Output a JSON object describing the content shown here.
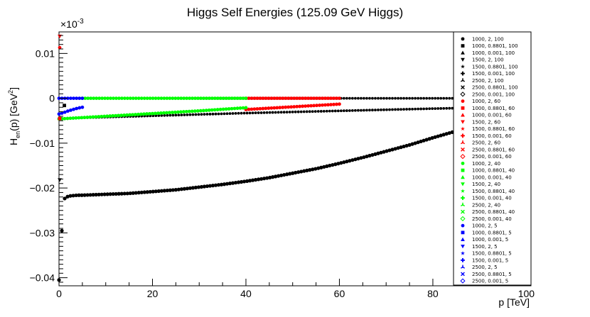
{
  "chart_data": {
    "type": "scatter",
    "title": "Higgs Self Energies (125.09 GeV Higgs)",
    "xlabel": "p [TeV]",
    "ylabel_main": "H",
    "ylabel_sub": "en",
    "ylabel_rest": "(p) [GeV",
    "ylabel_sup": "2",
    "ylabel_close": "]",
    "y_exponent": "×10",
    "y_exponent_power": "-3",
    "xlim": [
      0,
      101
    ],
    "ylim": [
      -0.0418,
      0.0148
    ],
    "x_ticks": [
      0,
      20,
      40,
      60,
      80,
      100
    ],
    "x_tick_labels": [
      "0",
      "20",
      "40",
      "60",
      "80",
      "100"
    ],
    "y_ticks": [
      0.01,
      0,
      -0.01,
      -0.02,
      -0.03,
      -0.04
    ],
    "y_tick_labels": [
      "0.01",
      "0",
      "−0.01",
      "−0.02",
      "−0.03",
      "−0.04"
    ],
    "grid": false,
    "legend_position": "right",
    "colors": {
      "black": "#000000",
      "red": "#ff0000",
      "green": "#00ff00",
      "blue": "#0000ff"
    },
    "legend": [
      {
        "label": "1000, 2, 100",
        "color": "#000000",
        "marker": "circle"
      },
      {
        "label": "1000, 0.8801, 100",
        "color": "#000000",
        "marker": "square"
      },
      {
        "label": "1000, 0.001, 100",
        "color": "#000000",
        "marker": "triangle-up"
      },
      {
        "label": "1500, 2, 100",
        "color": "#000000",
        "marker": "triangle-down"
      },
      {
        "label": "1500, 0.8801, 100",
        "color": "#000000",
        "marker": "star"
      },
      {
        "label": "1500, 0.001, 100",
        "color": "#000000",
        "marker": "cross"
      },
      {
        "label": "2500, 2, 100",
        "color": "#000000",
        "marker": "tri-star"
      },
      {
        "label": "2500, 0.8801, 100",
        "color": "#000000",
        "marker": "x"
      },
      {
        "label": "2500, 0.001, 100",
        "color": "#000000",
        "marker": "open-diamond"
      },
      {
        "label": "1000, 2, 60",
        "color": "#ff0000",
        "marker": "circle"
      },
      {
        "label": "1000, 0.8801, 60",
        "color": "#ff0000",
        "marker": "square"
      },
      {
        "label": "1000, 0.001, 60",
        "color": "#ff0000",
        "marker": "triangle-up"
      },
      {
        "label": "1500, 2, 60",
        "color": "#ff0000",
        "marker": "triangle-down"
      },
      {
        "label": "1500, 0.8801, 60",
        "color": "#ff0000",
        "marker": "star"
      },
      {
        "label": "1500, 0.001, 60",
        "color": "#ff0000",
        "marker": "cross"
      },
      {
        "label": "2500, 2, 60",
        "color": "#ff0000",
        "marker": "tri-star"
      },
      {
        "label": "2500, 0.8801, 60",
        "color": "#ff0000",
        "marker": "x"
      },
      {
        "label": "2500, 0.001, 60",
        "color": "#ff0000",
        "marker": "open-diamond"
      },
      {
        "label": "1000, 2, 40",
        "color": "#00ff00",
        "marker": "circle"
      },
      {
        "label": "1000, 0.8801, 40",
        "color": "#00ff00",
        "marker": "square"
      },
      {
        "label": "1000, 0.001, 40",
        "color": "#00ff00",
        "marker": "triangle-up"
      },
      {
        "label": "1500, 2, 40",
        "color": "#00ff00",
        "marker": "triangle-down"
      },
      {
        "label": "1500, 0.8801, 40",
        "color": "#00ff00",
        "marker": "star"
      },
      {
        "label": "1500, 0.001, 40",
        "color": "#00ff00",
        "marker": "cross"
      },
      {
        "label": "2500, 2, 40",
        "color": "#00ff00",
        "marker": "tri-star"
      },
      {
        "label": "2500, 0.8801, 40",
        "color": "#00ff00",
        "marker": "x"
      },
      {
        "label": "2500, 0.001, 40",
        "color": "#00ff00",
        "marker": "open-diamond"
      },
      {
        "label": "1000, 2, 5",
        "color": "#0000ff",
        "marker": "circle"
      },
      {
        "label": "1000, 0.8801, 5",
        "color": "#0000ff",
        "marker": "square"
      },
      {
        "label": "1000, 0.001, 5",
        "color": "#0000ff",
        "marker": "triangle-up"
      },
      {
        "label": "1500, 2, 5",
        "color": "#0000ff",
        "marker": "triangle-down"
      },
      {
        "label": "1500, 0.8801, 5",
        "color": "#0000ff",
        "marker": "star"
      },
      {
        "label": "1500, 0.001, 5",
        "color": "#0000ff",
        "marker": "cross"
      },
      {
        "label": "2500, 2, 5",
        "color": "#0000ff",
        "marker": "tri-star"
      },
      {
        "label": "2500, 0.8801, 5",
        "color": "#0000ff",
        "marker": "x"
      },
      {
        "label": "2500, 0.001, 5",
        "color": "#0000ff",
        "marker": "open-diamond"
      }
    ],
    "series": [
      {
        "color": "#000000",
        "marker": "circle",
        "size": 2.6,
        "points": [
          [
            0,
            -0.0405
          ],
          [
            1,
            -0.0225
          ],
          [
            2,
            -0.0218
          ],
          [
            3,
            -0.0217
          ],
          [
            4,
            -0.0216
          ],
          [
            5,
            -0.0216
          ],
          [
            10,
            -0.0214
          ],
          [
            15,
            -0.0212
          ],
          [
            20,
            -0.0208
          ],
          [
            25,
            -0.0204
          ],
          [
            30,
            -0.0198
          ],
          [
            35,
            -0.0192
          ],
          [
            40,
            -0.0185
          ],
          [
            45,
            -0.0177
          ],
          [
            50,
            -0.0167
          ],
          [
            55,
            -0.0157
          ],
          [
            60,
            -0.0145
          ],
          [
            65,
            -0.0132
          ],
          [
            70,
            -0.0118
          ],
          [
            75,
            -0.0104
          ],
          [
            80,
            -0.0088
          ],
          [
            85,
            -0.0073
          ],
          [
            90,
            -0.006
          ],
          [
            95,
            -0.0053
          ],
          [
            100,
            -0.0054
          ]
        ]
      },
      {
        "color": "#000000",
        "marker": "circle",
        "size": 1.9,
        "points": [
          [
            0,
            -0.0045
          ],
          [
            20,
            -0.0039
          ],
          [
            40,
            -0.0033
          ],
          [
            60,
            -0.0028
          ],
          [
            80,
            -0.0023
          ],
          [
            100,
            -0.0019
          ]
        ]
      },
      {
        "color": "#000000",
        "marker": "circle",
        "size": 1.9,
        "points": [
          [
            0,
            0
          ],
          [
            20,
            0
          ],
          [
            40,
            0
          ],
          [
            60,
            0
          ],
          [
            80,
            0
          ],
          [
            100,
            0
          ]
        ]
      },
      {
        "color": "#ff0000",
        "marker": "circle",
        "size": 2.4,
        "points": [
          [
            40,
            -0.0025
          ],
          [
            45,
            -0.0022
          ],
          [
            50,
            -0.0019
          ],
          [
            55,
            -0.0016
          ],
          [
            60,
            -0.0013
          ]
        ]
      },
      {
        "color": "#ff0000",
        "marker": "circle",
        "size": 2.4,
        "points": [
          [
            40,
            0
          ],
          [
            45,
            0
          ],
          [
            50,
            0
          ],
          [
            55,
            0
          ],
          [
            60,
            0
          ]
        ]
      },
      {
        "color": "#00ff00",
        "marker": "circle",
        "size": 2.4,
        "points": [
          [
            0,
            -0.0046
          ],
          [
            10,
            -0.004
          ],
          [
            20,
            -0.0034
          ],
          [
            30,
            -0.0028
          ],
          [
            40,
            -0.0021
          ]
        ]
      },
      {
        "color": "#00ff00",
        "marker": "circle",
        "size": 2.4,
        "points": [
          [
            5,
            0
          ],
          [
            15,
            0
          ],
          [
            25,
            0
          ],
          [
            35,
            0
          ],
          [
            40,
            0
          ]
        ]
      },
      {
        "color": "#0000ff",
        "marker": "circle",
        "size": 2.4,
        "points": [
          [
            0,
            -0.0035
          ],
          [
            1,
            -0.0032
          ],
          [
            2,
            -0.0028
          ],
          [
            3,
            -0.0025
          ],
          [
            4,
            -0.0022
          ],
          [
            5,
            -0.002
          ]
        ]
      },
      {
        "color": "#0000ff",
        "marker": "circle",
        "size": 2.4,
        "points": [
          [
            0,
            0
          ],
          [
            1,
            0
          ],
          [
            2,
            0
          ],
          [
            3,
            0
          ],
          [
            4,
            0
          ],
          [
            5,
            0
          ]
        ]
      }
    ],
    "outliers": [
      {
        "x": 0,
        "y": 0.0113,
        "color": "#ff0000",
        "marker": "circle"
      },
      {
        "x": 0,
        "y": 0.0138,
        "color": "#ff0000",
        "marker": "triangle-down"
      },
      {
        "x": 1,
        "y": -0.0016,
        "color": "#000000",
        "marker": "square"
      },
      {
        "x": 0,
        "y": -0.0182,
        "color": "#000000",
        "marker": "triangle-down"
      },
      {
        "x": 0,
        "y": -0.0045,
        "color": "#ff0000",
        "marker": "square"
      }
    ]
  }
}
